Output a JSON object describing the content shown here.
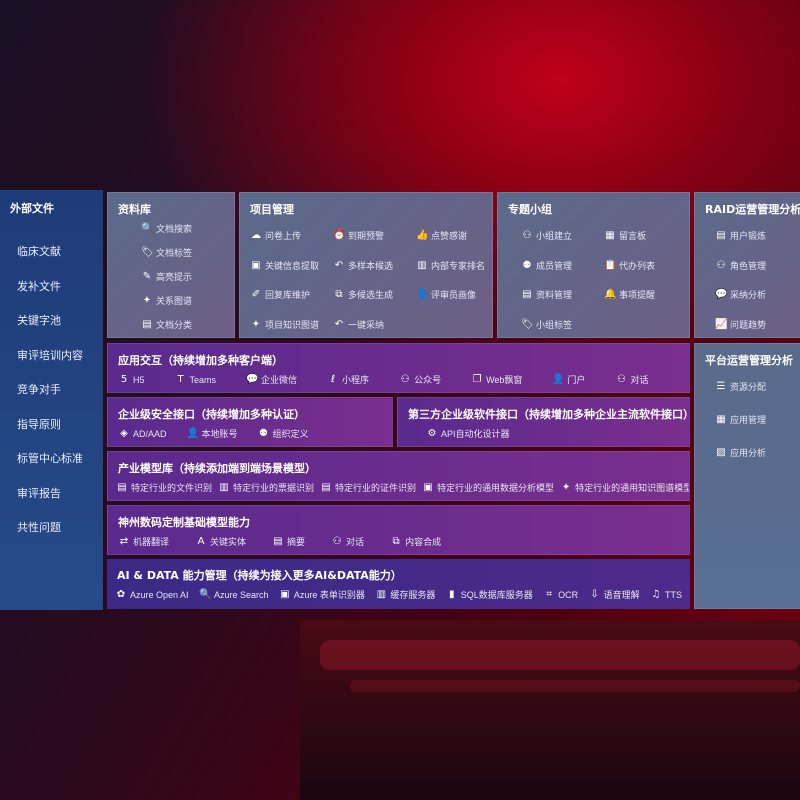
{
  "sidebar": {
    "title": "外部文件",
    "items": [
      "临床文献",
      "发补文件",
      "关键字池",
      "审评培训内容",
      "竞争对手",
      "指导原则",
      "标管中心标准",
      "审评报告",
      "共性问题"
    ]
  },
  "library": {
    "title": "资料库",
    "items": [
      {
        "icon": "doc-search-icon",
        "label": "文档搜索"
      },
      {
        "icon": "tag-icon",
        "label": "文档标签"
      },
      {
        "icon": "pen-icon",
        "label": "高亮提示"
      },
      {
        "icon": "graph-icon",
        "label": "关系图谱"
      },
      {
        "icon": "folder-icon",
        "label": "文档分类"
      }
    ]
  },
  "project": {
    "title": "项目管理",
    "items": [
      {
        "icon": "cloud-upload-icon",
        "label": "问卷上传"
      },
      {
        "icon": "alarm-icon",
        "label": "到期预警"
      },
      {
        "icon": "thumbs-up-icon",
        "label": "点赞感谢"
      },
      {
        "icon": "form-icon",
        "label": "关键信息提取"
      },
      {
        "icon": "reply-icon",
        "label": "多样本候选"
      },
      {
        "icon": "rank-icon",
        "label": "内部专家排名"
      },
      {
        "icon": "edit-icon",
        "label": "回复库维护"
      },
      {
        "icon": "puzzle-icon",
        "label": "多候选生成"
      },
      {
        "icon": "user-icon",
        "label": "评审员画像"
      },
      {
        "icon": "graph-icon",
        "label": "项目知识图谱"
      },
      {
        "icon": "reply-icon",
        "label": "一键采纳"
      }
    ]
  },
  "group": {
    "title": "专题小组",
    "items": [
      {
        "icon": "users-icon",
        "label": "小组建立"
      },
      {
        "icon": "bbs-icon",
        "label": "留言板"
      },
      {
        "icon": "user-add-icon",
        "label": "成员管理"
      },
      {
        "icon": "clipboard-icon",
        "label": "代办列表"
      },
      {
        "icon": "folder-icon",
        "label": "资料管理"
      },
      {
        "icon": "bell-icon",
        "label": "事项提醒"
      },
      {
        "icon": "tag-icon",
        "label": "小组标签"
      }
    ]
  },
  "raid": {
    "title": "RAID运营管理分析",
    "items": [
      {
        "icon": "id-card-icon",
        "label": "用户锻炼"
      },
      {
        "icon": "users-icon",
        "label": "角色管理"
      },
      {
        "icon": "qa-icon",
        "label": "采纳分析"
      },
      {
        "icon": "trend-icon",
        "label": "问题趋势"
      }
    ]
  },
  "platform": {
    "title": "平台运营管理分析",
    "items": [
      {
        "icon": "list-icon",
        "label": "资源分配"
      },
      {
        "icon": "apps-icon",
        "label": "应用管理"
      },
      {
        "icon": "chart-icon",
        "label": "应用分析"
      }
    ]
  },
  "interaction": {
    "title": "应用交互（持续增加多种客户端）",
    "items": [
      {
        "icon": "html5-icon",
        "label": "H5"
      },
      {
        "icon": "teams-icon",
        "label": "Teams"
      },
      {
        "icon": "wechat-icon",
        "label": "企业微信"
      },
      {
        "icon": "mini-program-icon",
        "label": "小程序"
      },
      {
        "icon": "users-icon",
        "label": "公众号"
      },
      {
        "icon": "window-icon",
        "label": "Web飘窗"
      },
      {
        "icon": "portal-icon",
        "label": "门户"
      },
      {
        "icon": "chat-icon",
        "label": "对话"
      }
    ]
  },
  "security": {
    "title": "企业级安全接口（持续增加多种认证）",
    "items": [
      {
        "icon": "ad-icon",
        "label": "AD/AAD"
      },
      {
        "icon": "account-icon",
        "label": "本地账号"
      },
      {
        "icon": "org-icon",
        "label": "组织定义"
      }
    ]
  },
  "thirdparty": {
    "title": "第三方企业级软件接口（持续增加多种企业主流软件接口）",
    "items": [
      {
        "icon": "gear-icon",
        "label": "API自动化设计器"
      }
    ]
  },
  "industry": {
    "title": "产业模型库（持续添加端到端场景模型）",
    "items": [
      {
        "icon": "file-icon",
        "label": "特定行业的文件识别"
      },
      {
        "icon": "receipt-icon",
        "label": "特定行业的票据识别"
      },
      {
        "icon": "id-card-icon",
        "label": "特定行业的证件识别"
      },
      {
        "icon": "image-icon",
        "label": "特定行业的通用数据分析模型"
      },
      {
        "icon": "graph-icon",
        "label": "特定行业的通用知识图谱模型"
      }
    ]
  },
  "base": {
    "title": "神州数码定制基础模型能力",
    "items": [
      {
        "icon": "translate-icon",
        "label": "机器翻译"
      },
      {
        "icon": "entity-icon",
        "label": "关键实体"
      },
      {
        "icon": "summary-icon",
        "label": "摘要"
      },
      {
        "icon": "chat-icon",
        "label": "对话"
      },
      {
        "icon": "puzzle-icon",
        "label": "内容合成"
      }
    ]
  },
  "aidata": {
    "title": "AI & DATA 能力管理（持续为接入更多AI&DATA能力）",
    "items": [
      {
        "icon": "openai-icon",
        "label": "Azure Open AI"
      },
      {
        "icon": "search-icon",
        "label": "Azure Search"
      },
      {
        "icon": "form-icon",
        "label": "Azure 表单识别器"
      },
      {
        "icon": "cache-icon",
        "label": "缓存服务器"
      },
      {
        "icon": "sql-icon",
        "label": "SQL数据库服务器"
      },
      {
        "icon": "ocr-icon",
        "label": "OCR"
      },
      {
        "icon": "speech-icon",
        "label": "语音理解"
      },
      {
        "icon": "tts-icon",
        "label": "TTS"
      }
    ]
  }
}
